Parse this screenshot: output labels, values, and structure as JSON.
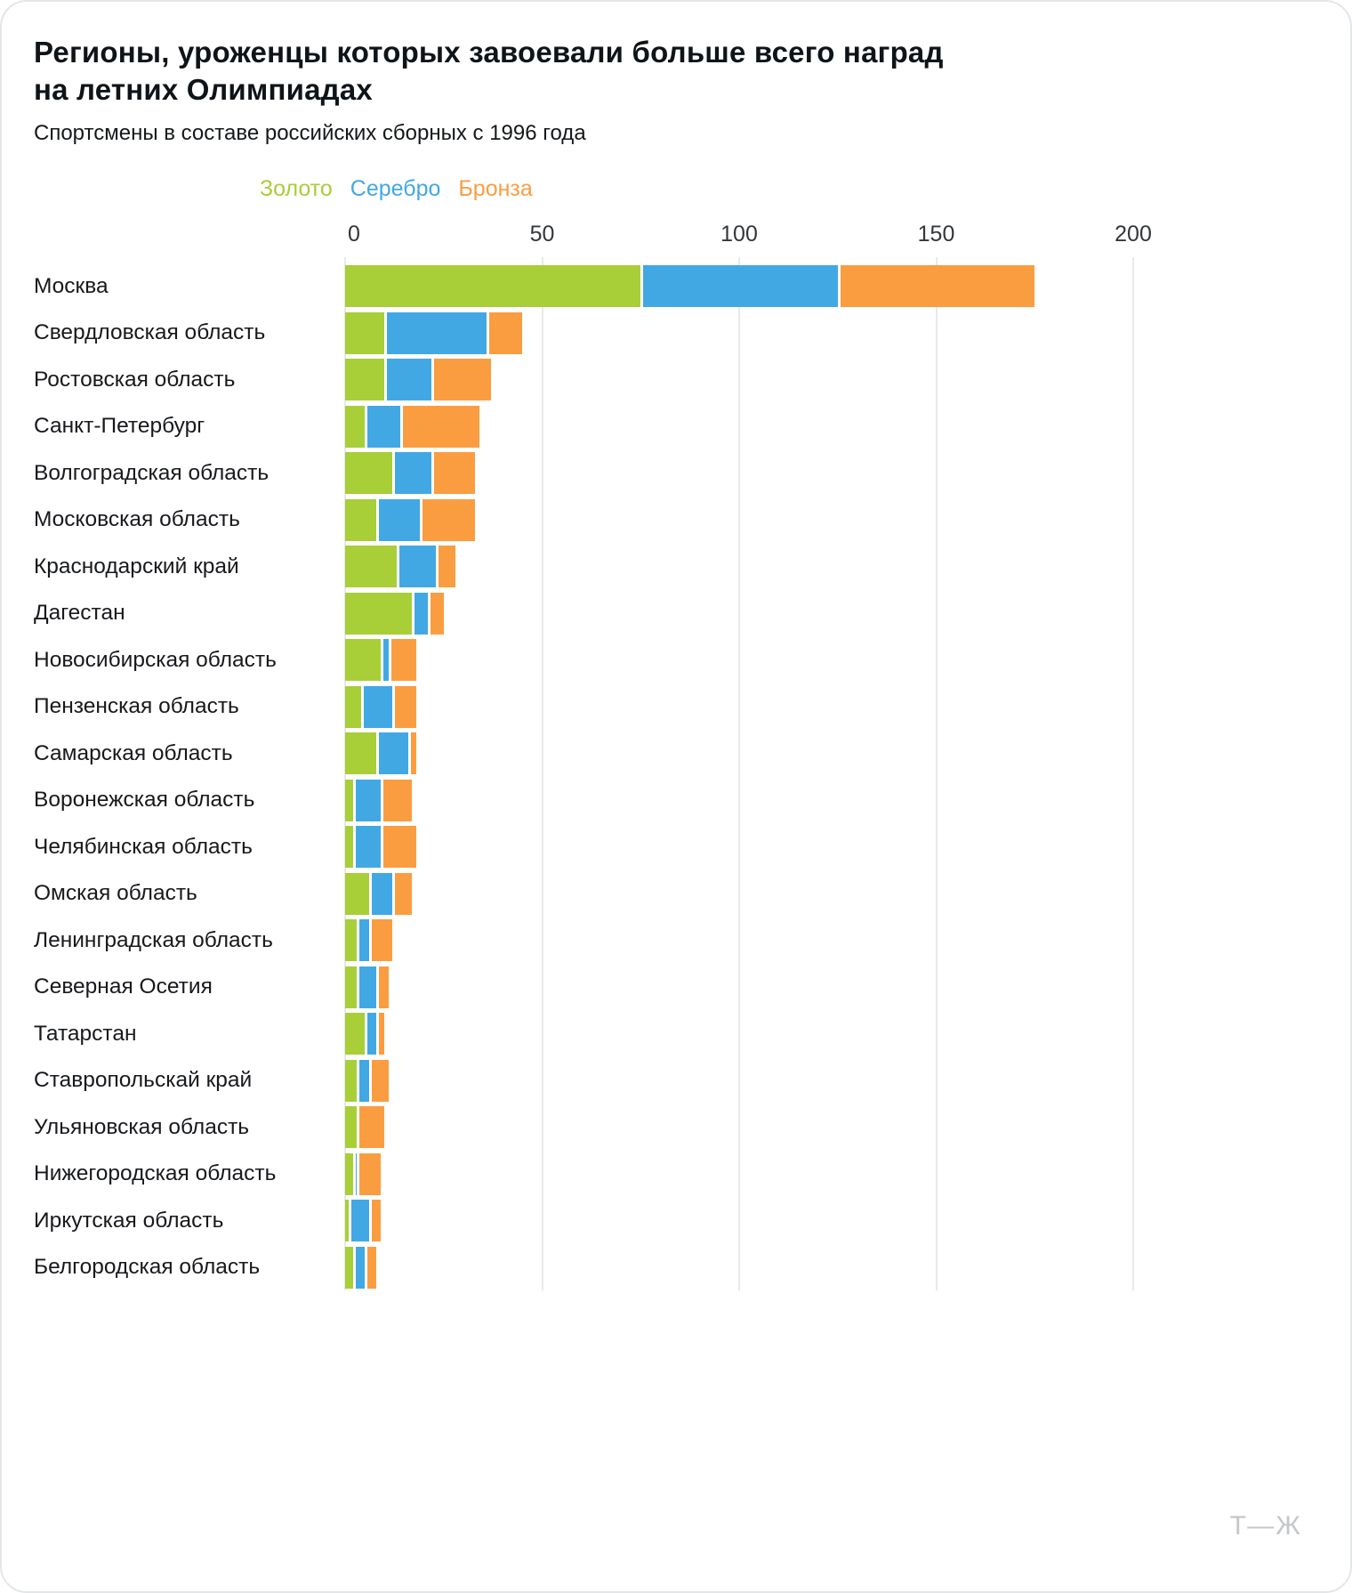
{
  "header": {
    "title_line1": "Регионы, уроженцы которых завоевали больше всего наград",
    "title_line2": "на летних Олимпиадах",
    "subtitle": "Спортсмены в составе российских сборных с 1996 года"
  },
  "legend": [
    {
      "label": "Золото",
      "color": "#a8ce38"
    },
    {
      "label": "Серебро",
      "color": "#42a8e4"
    },
    {
      "label": "Бронза",
      "color": "#fa9d41"
    }
  ],
  "logo": "Т—Ж",
  "chart_data": {
    "type": "bar",
    "orientation": "horizontal",
    "stacked": true,
    "title": "Регионы, уроженцы которых завоевали больше всего наград на летних Олимпиадах",
    "subtitle": "Спортсмены в составе российских сборных с 1996 года",
    "xlim": [
      0,
      200
    ],
    "axis_ticks": [
      0,
      50,
      100,
      150,
      200
    ],
    "grid": true,
    "legend_position": "top",
    "series_names": [
      "Золото",
      "Серебро",
      "Бронза"
    ],
    "colors": {
      "gold": "#a8ce38",
      "silver": "#42a8e4",
      "bronze": "#fa9d41"
    },
    "regions": [
      {
        "name": "Москва",
        "gold": 75,
        "silver": 50,
        "bronze": 50
      },
      {
        "name": "Свердловская область",
        "gold": 10,
        "silver": 26,
        "bronze": 9
      },
      {
        "name": "Ростовская область",
        "gold": 10,
        "silver": 12,
        "bronze": 15
      },
      {
        "name": "Санкт-Петербург",
        "gold": 5,
        "silver": 9,
        "bronze": 20
      },
      {
        "name": "Волгоградская область",
        "gold": 12,
        "silver": 10,
        "bronze": 11
      },
      {
        "name": "Московская область",
        "gold": 8,
        "silver": 11,
        "bronze": 14
      },
      {
        "name": "Краснодарский край",
        "gold": 13,
        "silver": 10,
        "bronze": 5
      },
      {
        "name": "Дагестан",
        "gold": 17,
        "silver": 4,
        "bronze": 4
      },
      {
        "name": "Новосибирская область",
        "gold": 9,
        "silver": 2,
        "bronze": 7
      },
      {
        "name": "Пензенская область",
        "gold": 4,
        "silver": 8,
        "bronze": 6
      },
      {
        "name": "Самарская область",
        "gold": 8,
        "silver": 8,
        "bronze": 2
      },
      {
        "name": "Воронежская область",
        "gold": 2,
        "silver": 7,
        "bronze": 8
      },
      {
        "name": "Челябинская область",
        "gold": 2,
        "silver": 7,
        "bronze": 9
      },
      {
        "name": "Омская область",
        "gold": 6,
        "silver": 6,
        "bronze": 5
      },
      {
        "name": "Ленинградская область",
        "gold": 3,
        "silver": 3,
        "bronze": 6
      },
      {
        "name": "Северная Осетия",
        "gold": 3,
        "silver": 5,
        "bronze": 3
      },
      {
        "name": "Татарстан",
        "gold": 5,
        "silver": 3,
        "bronze": 2
      },
      {
        "name": "Ставропольскай край",
        "gold": 3,
        "silver": 3,
        "bronze": 5
      },
      {
        "name": "Ульяновская область",
        "gold": 3,
        "silver": 0,
        "bronze": 7
      },
      {
        "name": "Нижегородская область",
        "gold": 2,
        "silver": 1,
        "bronze": 6
      },
      {
        "name": "Иркутская область",
        "gold": 1,
        "silver": 5,
        "bronze": 3
      },
      {
        "name": "Белгородская область",
        "gold": 2,
        "silver": 3,
        "bronze": 3
      }
    ]
  }
}
